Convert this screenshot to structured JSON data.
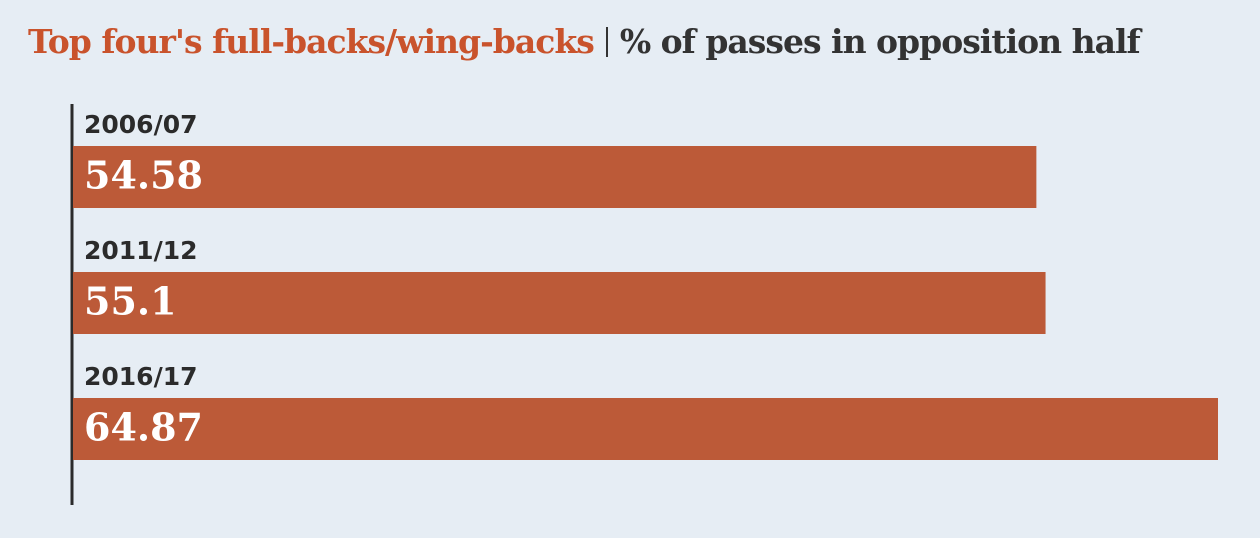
{
  "chart_data": {
    "type": "barh",
    "title": "Top four's full-backs/wing-backs",
    "subtitle": "% of passes in opposition half",
    "categories": [
      "2006/07",
      "2011/12",
      "2016/17"
    ],
    "values": [
      54.58,
      55.1,
      64.87
    ],
    "color": "#bc5a38"
  }
}
